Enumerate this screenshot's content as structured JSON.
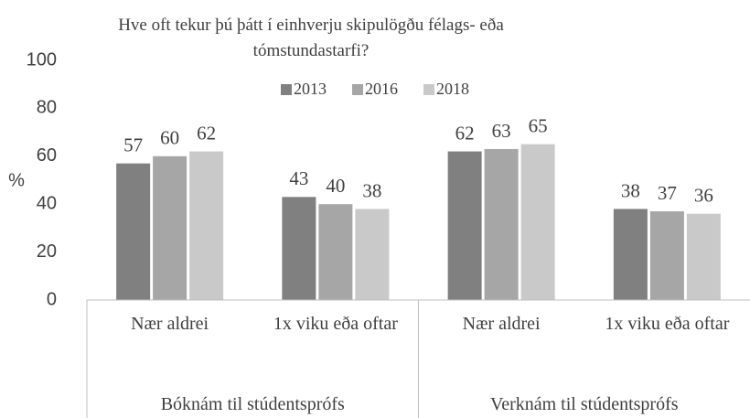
{
  "chart_data": {
    "type": "bar",
    "title": "Hve oft tekur þú þátt í einhverju skipulögðu félags- eða tómstundastarfi?",
    "ylabel": "%",
    "groups": [
      {
        "name": "Bóknám til stúdentsprófs",
        "categories": [
          "Nær aldrei",
          "1x viku eða oftar"
        ]
      },
      {
        "name": "Verknám til stúdentsprófs",
        "categories": [
          "Nær aldrei",
          "1x viku eða oftar"
        ]
      }
    ],
    "series": [
      {
        "name": "2013",
        "color": "#808080",
        "values": [
          57,
          43,
          62,
          38
        ]
      },
      {
        "name": "2016",
        "color": "#a6a6a6",
        "values": [
          60,
          40,
          63,
          37
        ]
      },
      {
        "name": "2018",
        "color": "#c9c9c9",
        "values": [
          62,
          38,
          65,
          36
        ]
      }
    ],
    "ylim": [
      0,
      100
    ],
    "yticks": [
      0,
      20,
      40,
      60,
      80,
      100
    ],
    "legend": "top"
  }
}
